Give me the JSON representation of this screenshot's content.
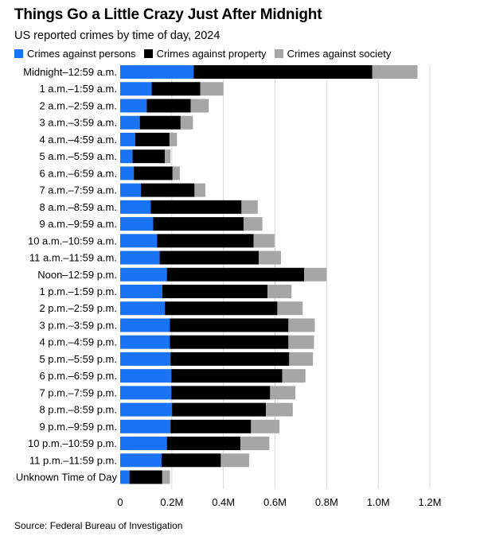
{
  "title": "Things Go a Little Crazy Just After Midnight",
  "subtitle": "US reported crimes by time of day, 2024",
  "source": "Source: Federal Bureau of Investigation",
  "colors": {
    "persons": "#1a73f5",
    "property": "#000000",
    "society": "#a6a6a6",
    "grid": "#d9d9d9"
  },
  "chart_data": {
    "type": "bar",
    "orientation": "horizontal",
    "stacked": true,
    "categories": [
      "Midnight–12:59 a.m.",
      "1 a.m.–1:59 a.m.",
      "2 a.m.–2:59 a.m.",
      "3 a.m.–3:59 a.m.",
      "4 a.m.–4:59 a.m.",
      "5 a.m.–5:59 a.m.",
      "6 a.m.–6:59 a.m.",
      "7 a.m.–7:59 a.m.",
      "8 a.m.–8:59 a.m.",
      "9 a.m.–9:59 a.m.",
      "10 a.m.–10:59 a.m.",
      "11 a.m.–11:59 a.m.",
      "Noon–12:59 p.m.",
      "1 p.m.–1:59 p.m.",
      "2 p.m.–2:59 p.m.",
      "3 p.m.–3:59 p.m.",
      "4 p.m.–4:59 p.m.",
      "5 p.m.–5:59 p.m.",
      "6 p.m.–6:59 p.m.",
      "7 p.m.–7:59 p.m.",
      "8 p.m.–8:59 p.m.",
      "9 p.m.–9:59 p.m.",
      "10 p.m.–10:59 p.m.",
      "11 p.m.–11:59 p.m.",
      "Unknown Time of Day"
    ],
    "series": [
      {
        "name": "Crimes against persons",
        "color": "#1a73f5",
        "values": [
          285000,
          122000,
          103000,
          76000,
          58000,
          48000,
          53000,
          80000,
          118000,
          128000,
          143000,
          153000,
          181000,
          163000,
          173000,
          192000,
          192000,
          195000,
          198000,
          198000,
          201000,
          195000,
          181000,
          160000,
          36000
        ]
      },
      {
        "name": "Crimes against property",
        "color": "#000000",
        "values": [
          692000,
          188000,
          170000,
          158000,
          133000,
          125000,
          150000,
          208000,
          352000,
          350000,
          374000,
          384000,
          532000,
          408000,
          436000,
          460000,
          460000,
          460000,
          430000,
          383000,
          364000,
          312000,
          285000,
          230000,
          127000
        ]
      },
      {
        "name": "Crimes against society",
        "color": "#a6a6a6",
        "values": [
          175000,
          90000,
          70000,
          48000,
          29000,
          22000,
          28000,
          42000,
          63000,
          73000,
          81000,
          86000,
          87000,
          93000,
          98000,
          102000,
          99000,
          92000,
          90000,
          98000,
          104000,
          110000,
          112000,
          110000,
          30000
        ]
      }
    ],
    "xlim": [
      0,
      1200000
    ],
    "xticks": [
      0,
      200000,
      400000,
      600000,
      800000,
      1000000,
      1200000
    ],
    "xtick_labels": [
      "0",
      "0.2M",
      "0.4M",
      "0.6M",
      "0.8M",
      "1.0M",
      "1.2M"
    ],
    "grid": "vertical",
    "legend_position": "top-left"
  }
}
